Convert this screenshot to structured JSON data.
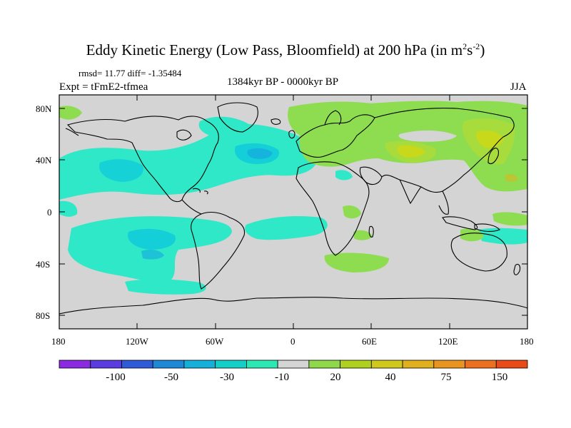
{
  "title": {
    "main": "Eddy Kinetic Energy (Low Pass, Bloomfield) at 200 hPa (in m",
    "sup1": "2",
    "mid": "s",
    "sup2": "-2",
    "end": ")"
  },
  "stats": "rmsd= 11.77 diff= -1.35484",
  "expt": "Expt = tFmE2-tfmea",
  "period": "1384kyr BP - 0000kyr BP",
  "season": "JJA",
  "axes": {
    "lat_labels": [
      "80N",
      "40N",
      "0",
      "40S",
      "80S"
    ],
    "lon_labels": [
      "180",
      "120W",
      "60W",
      "0",
      "60E",
      "120E",
      "180"
    ]
  },
  "colorbar": {
    "colors": [
      "#8a2be2",
      "#5a3ce0",
      "#2f5ad8",
      "#1e88d6",
      "#14b0da",
      "#14cfc8",
      "#2ee8b4",
      "#d4d4d4",
      "#8ed84a",
      "#b0d020",
      "#d0c81a",
      "#e0b01e",
      "#ea9420",
      "#ec7020",
      "#e84a18"
    ],
    "labels": [
      "-100",
      "-50",
      "-30",
      "-10",
      "20",
      "40",
      "75",
      "150"
    ]
  },
  "palette": {
    "cyan": "#2ee8c8",
    "cyan_mid": "#14cfd8",
    "cyan_dark": "#16a6e0",
    "green": "#8edc50",
    "green_light": "#a8dc3c",
    "yellow": "#c8d81a",
    "orange": "#e0b41e",
    "land_bg": "#d4d4d4"
  }
}
